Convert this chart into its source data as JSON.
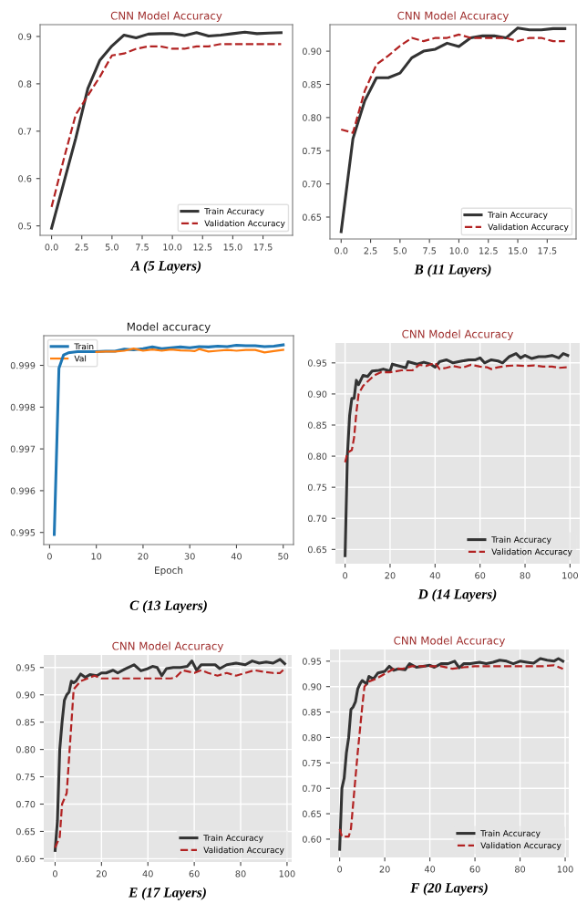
{
  "chart_data": [
    {
      "type": "line",
      "title": "CNN Model Accuracy",
      "annotations": [
        "A (5 Layers)"
      ],
      "legend": "bottom right",
      "grid": false,
      "xlim": [
        -0.95,
        19.95
      ],
      "xticks": [
        {
          "value": 0,
          "label": "0.0"
        },
        2.5,
        {
          "value": 5,
          "label": "5.0"
        },
        7.5,
        {
          "value": 10,
          "label": "10.0"
        },
        12.5,
        {
          "value": 15,
          "label": "15.0"
        },
        17.5
      ],
      "ylim": [
        0.48,
        0.925
      ],
      "yticks": [
        0.5,
        0.6,
        0.7,
        0.8,
        0.9
      ],
      "series": [
        {
          "name": "Train Accuracy",
          "color": "#333333",
          "line_style": "solid",
          "x": [
            0,
            1,
            2,
            3,
            4,
            5,
            6,
            7,
            8,
            9,
            10,
            11,
            12,
            13,
            14,
            15,
            16,
            17,
            18,
            19
          ],
          "values": [
            0.495,
            0.59,
            0.685,
            0.79,
            0.85,
            0.88,
            0.903,
            0.897,
            0.905,
            0.906,
            0.906,
            0.902,
            0.908,
            0.901,
            0.903,
            0.906,
            0.909,
            0.906,
            0.907,
            0.908
          ]
        },
        {
          "name": "Validation Accuracy",
          "color": "#b22222",
          "line_style": "dashed",
          "x": [
            0,
            1,
            2,
            3,
            4,
            5,
            6,
            7,
            8,
            9,
            10,
            11,
            12,
            13,
            14,
            15,
            16,
            17,
            18,
            19
          ],
          "values": [
            0.54,
            0.64,
            0.735,
            0.775,
            0.815,
            0.86,
            0.864,
            0.874,
            0.879,
            0.879,
            0.874,
            0.874,
            0.879,
            0.879,
            0.884,
            0.884,
            0.884,
            0.884,
            0.884,
            0.884
          ]
        }
      ]
    },
    {
      "type": "line",
      "title": "CNN Model Accuracy",
      "annotations": [
        "B (11 Layers)"
      ],
      "legend": "bottom right",
      "grid": false,
      "xlim": [
        -0.95,
        19.95
      ],
      "xticks": [
        {
          "value": 0,
          "label": "0.0"
        },
        2.5,
        {
          "value": 5,
          "label": "5.0"
        },
        7.5,
        {
          "value": 10,
          "label": "10.0"
        },
        12.5,
        {
          "value": 15,
          "label": "15.0"
        },
        17.5
      ],
      "ylim": [
        0.617,
        0.94
      ],
      "yticks": [
        {
          "value": 0.65,
          "label": "0.65"
        },
        {
          "value": 0.7,
          "label": "0.70"
        },
        {
          "value": 0.75,
          "label": "0.75"
        },
        {
          "value": 0.8,
          "label": "0.80"
        },
        {
          "value": 0.85,
          "label": "0.85"
        },
        {
          "value": 0.9,
          "label": "0.90"
        }
      ],
      "series": [
        {
          "name": "Train Accuracy",
          "color": "#333333",
          "line_style": "solid",
          "x": [
            0,
            1,
            2,
            3,
            4,
            5,
            6,
            7,
            8,
            9,
            10,
            11,
            12,
            13,
            14,
            15,
            16,
            17,
            18,
            19
          ],
          "values": [
            0.628,
            0.768,
            0.825,
            0.86,
            0.86,
            0.867,
            0.89,
            0.9,
            0.903,
            0.912,
            0.907,
            0.92,
            0.923,
            0.923,
            0.92,
            0.935,
            0.932,
            0.932,
            0.934,
            0.934
          ]
        },
        {
          "name": "Validation Accuracy",
          "color": "#b22222",
          "line_style": "dashed",
          "x": [
            0,
            1,
            2,
            3,
            4,
            5,
            6,
            7,
            8,
            9,
            10,
            11,
            12,
            13,
            14,
            15,
            16,
            17,
            18,
            19
          ],
          "values": [
            0.782,
            0.777,
            0.84,
            0.88,
            0.893,
            0.908,
            0.92,
            0.915,
            0.92,
            0.92,
            0.925,
            0.92,
            0.92,
            0.92,
            0.92,
            0.915,
            0.92,
            0.92,
            0.915,
            0.915
          ]
        }
      ]
    },
    {
      "type": "line",
      "title": "Model accuracy",
      "xlabel": "Epoch",
      "annotations": [
        "C (13 Layers)"
      ],
      "legend": "top left",
      "grid": false,
      "xlim": [
        -1.25,
        52.2
      ],
      "xticks": [
        0,
        10,
        20,
        30,
        40,
        50
      ],
      "ylim": [
        0.99471,
        0.99971
      ],
      "yticks": [
        0.995,
        0.996,
        0.997,
        0.998,
        0.999
      ],
      "series": [
        {
          "name": "Train",
          "color": "#1f77b4",
          "line_style": "solid",
          "x": [
            1,
            2,
            3,
            4,
            6,
            8,
            10,
            12,
            14,
            16,
            18,
            20,
            22,
            24,
            26,
            28,
            30,
            32,
            34,
            36,
            38,
            40,
            42,
            44,
            46,
            48,
            50
          ],
          "values": [
            0.99495,
            0.99893,
            0.99925,
            0.9993,
            0.99933,
            0.99933,
            0.99933,
            0.99934,
            0.99934,
            0.99939,
            0.99937,
            0.9994,
            0.99944,
            0.9994,
            0.99942,
            0.99944,
            0.99942,
            0.99945,
            0.99944,
            0.99946,
            0.99945,
            0.99948,
            0.99947,
            0.99947,
            0.99945,
            0.99946,
            0.99949
          ]
        },
        {
          "name": "Val",
          "color": "#ff7f0e",
          "line_style": "solid",
          "x": [
            10,
            12,
            14,
            16,
            18,
            20,
            22,
            24,
            26,
            28,
            30,
            31,
            32,
            34,
            36,
            38,
            40,
            42,
            44,
            46,
            48,
            50
          ],
          "values": [
            0.99932,
            0.99933,
            0.99933,
            0.99935,
            0.9994,
            0.99935,
            0.99938,
            0.99935,
            0.99938,
            0.99936,
            0.99935,
            0.99934,
            0.99939,
            0.99933,
            0.99935,
            0.99937,
            0.99935,
            0.99937,
            0.99937,
            0.99931,
            0.99934,
            0.99937
          ]
        }
      ]
    },
    {
      "type": "line",
      "title": "CNN Model Accuracy",
      "annotations": [
        "D (14 Layers)"
      ],
      "legend": "bottom right",
      "grid": true,
      "xlim": [
        -4.3,
        104.3
      ],
      "xticks": [
        0,
        20,
        40,
        60,
        80,
        100
      ],
      "ylim": [
        0.627,
        0.982
      ],
      "yticks": [
        {
          "value": 0.65,
          "label": "0.65"
        },
        {
          "value": 0.7,
          "label": "0.70"
        },
        {
          "value": 0.75,
          "label": "0.75"
        },
        {
          "value": 0.8,
          "label": "0.80"
        },
        {
          "value": 0.85,
          "label": "0.85"
        },
        {
          "value": 0.9,
          "label": "0.90"
        },
        {
          "value": 0.95,
          "label": "0.95"
        }
      ],
      "series": [
        {
          "name": "Train Accuracy",
          "color": "#333333",
          "line_style": "solid",
          "x": [
            0,
            1,
            2,
            3,
            4,
            5,
            6,
            8,
            10,
            12,
            15,
            17,
            20,
            21,
            24,
            27,
            28,
            32,
            35,
            38,
            40,
            42,
            45,
            48,
            52,
            55,
            58,
            60,
            62,
            65,
            68,
            70,
            73,
            76,
            78,
            80,
            83,
            86,
            89,
            92,
            95,
            97,
            99
          ],
          "values": [
            0.64,
            0.8,
            0.865,
            0.893,
            0.893,
            0.922,
            0.915,
            0.93,
            0.928,
            0.937,
            0.938,
            0.94,
            0.937,
            0.948,
            0.945,
            0.942,
            0.952,
            0.948,
            0.951,
            0.948,
            0.943,
            0.952,
            0.955,
            0.95,
            0.953,
            0.955,
            0.955,
            0.958,
            0.95,
            0.955,
            0.953,
            0.95,
            0.96,
            0.965,
            0.958,
            0.962,
            0.957,
            0.96,
            0.96,
            0.962,
            0.958,
            0.965,
            0.962
          ]
        },
        {
          "name": "Validation Accuracy",
          "color": "#b22222",
          "line_style": "dashed",
          "x": [
            0,
            1,
            3,
            4,
            5,
            6,
            8,
            10,
            13,
            16,
            20,
            25,
            30,
            33,
            36,
            40,
            42,
            45,
            48,
            52,
            56,
            60,
            63,
            65,
            68,
            72,
            76,
            80,
            84,
            88,
            92,
            95,
            99
          ],
          "values": [
            0.79,
            0.805,
            0.81,
            0.83,
            0.87,
            0.9,
            0.913,
            0.92,
            0.93,
            0.935,
            0.935,
            0.938,
            0.938,
            0.947,
            0.945,
            0.95,
            0.94,
            0.942,
            0.945,
            0.942,
            0.947,
            0.944,
            0.943,
            0.94,
            0.943,
            0.945,
            0.946,
            0.945,
            0.946,
            0.944,
            0.944,
            0.942,
            0.943
          ]
        }
      ]
    },
    {
      "type": "line",
      "title": "CNN Model Accuracy",
      "annotations": [
        "E (17 Layers)"
      ],
      "legend": "bottom right",
      "grid": true,
      "xlim": [
        -4.9,
        102
      ],
      "xticks": [
        0,
        20,
        40,
        60,
        80,
        100
      ],
      "ylim": [
        0.594,
        0.973
      ],
      "yticks": [
        {
          "value": 0.6,
          "label": "0.60"
        },
        {
          "value": 0.65,
          "label": "0.65"
        },
        {
          "value": 0.7,
          "label": "0.70"
        },
        {
          "value": 0.75,
          "label": "0.75"
        },
        {
          "value": 0.8,
          "label": "0.80"
        },
        {
          "value": 0.85,
          "label": "0.85"
        },
        {
          "value": 0.9,
          "label": "0.90"
        },
        {
          "value": 0.95,
          "label": "0.95"
        }
      ],
      "series": [
        {
          "name": "Train Accuracy",
          "color": "#333333",
          "line_style": "solid",
          "x": [
            0,
            1,
            2,
            3,
            4,
            5,
            6,
            7,
            8,
            9,
            11,
            13,
            15,
            18,
            20,
            22,
            25,
            27,
            30,
            34,
            37,
            40,
            42,
            44,
            46,
            48,
            51,
            54,
            57,
            59,
            61,
            63,
            66,
            69,
            71,
            74,
            78,
            82,
            85,
            88,
            91,
            94,
            97,
            99
          ],
          "values": [
            0.615,
            0.67,
            0.8,
            0.85,
            0.89,
            0.9,
            0.905,
            0.925,
            0.922,
            0.925,
            0.938,
            0.932,
            0.937,
            0.935,
            0.94,
            0.94,
            0.945,
            0.94,
            0.947,
            0.955,
            0.944,
            0.948,
            0.952,
            0.95,
            0.935,
            0.948,
            0.95,
            0.95,
            0.952,
            0.962,
            0.945,
            0.955,
            0.955,
            0.955,
            0.948,
            0.955,
            0.958,
            0.955,
            0.962,
            0.958,
            0.96,
            0.958,
            0.965,
            0.957
          ]
        },
        {
          "name": "Validation Accuracy",
          "color": "#b22222",
          "line_style": "dashed",
          "x": [
            0,
            2,
            3,
            5,
            8,
            11,
            14,
            17,
            20,
            30,
            40,
            45,
            50,
            52,
            55,
            60,
            63,
            66,
            70,
            74,
            78,
            82,
            86,
            90,
            94,
            97,
            99
          ],
          "values": [
            0.62,
            0.64,
            0.7,
            0.72,
            0.91,
            0.925,
            0.93,
            0.935,
            0.93,
            0.93,
            0.93,
            0.93,
            0.93,
            0.932,
            0.945,
            0.94,
            0.945,
            0.94,
            0.935,
            0.94,
            0.935,
            0.94,
            0.945,
            0.942,
            0.94,
            0.94,
            0.948
          ]
        }
      ]
    },
    {
      "type": "line",
      "title": "CNN Model Accuracy",
      "annotations": [
        "F (20 Layers)"
      ],
      "legend": "bottom right",
      "grid": true,
      "xlim": [
        -4.3,
        101.6
      ],
      "xticks": [
        0,
        20,
        40,
        60,
        80,
        100
      ],
      "ylim": [
        0.564,
        0.973
      ],
      "yticks": [
        {
          "value": 0.6,
          "label": "0.60"
        },
        {
          "value": 0.65,
          "label": "0.65"
        },
        {
          "value": 0.7,
          "label": "0.70"
        },
        {
          "value": 0.75,
          "label": "0.75"
        },
        {
          "value": 0.8,
          "label": "0.80"
        },
        {
          "value": 0.85,
          "label": "0.85"
        },
        {
          "value": 0.9,
          "label": "0.90"
        },
        {
          "value": 0.95,
          "label": "0.95"
        }
      ],
      "series": [
        {
          "name": "Train Accuracy",
          "color": "#333333",
          "line_style": "solid",
          "x": [
            0,
            1,
            2,
            3,
            4,
            5,
            6,
            7,
            8,
            9,
            10,
            12,
            13,
            15,
            17,
            20,
            22,
            24,
            26,
            29,
            31,
            34,
            37,
            40,
            42,
            45,
            48,
            51,
            53,
            55,
            58,
            62,
            65,
            68,
            71,
            74,
            77,
            80,
            83,
            86,
            89,
            92,
            95,
            97,
            99
          ],
          "values": [
            0.58,
            0.7,
            0.72,
            0.77,
            0.8,
            0.855,
            0.86,
            0.87,
            0.895,
            0.905,
            0.912,
            0.905,
            0.92,
            0.915,
            0.927,
            0.93,
            0.94,
            0.932,
            0.935,
            0.933,
            0.945,
            0.938,
            0.94,
            0.942,
            0.938,
            0.945,
            0.945,
            0.95,
            0.937,
            0.945,
            0.945,
            0.948,
            0.945,
            0.948,
            0.952,
            0.95,
            0.945,
            0.95,
            0.948,
            0.946,
            0.955,
            0.952,
            0.95,
            0.955,
            0.95
          ]
        },
        {
          "name": "Validation Accuracy",
          "color": "#b22222",
          "line_style": "dashed",
          "x": [
            0,
            1,
            4,
            5,
            6,
            8,
            10,
            11,
            13,
            16,
            20,
            24,
            28,
            32,
            40,
            45,
            50,
            55,
            60,
            70,
            80,
            90,
            95,
            99
          ],
          "values": [
            0.62,
            0.605,
            0.605,
            0.62,
            0.67,
            0.77,
            0.86,
            0.9,
            0.91,
            0.915,
            0.925,
            0.935,
            0.935,
            0.94,
            0.94,
            0.94,
            0.935,
            0.938,
            0.94,
            0.94,
            0.94,
            0.94,
            0.942,
            0.935
          ]
        }
      ]
    }
  ]
}
